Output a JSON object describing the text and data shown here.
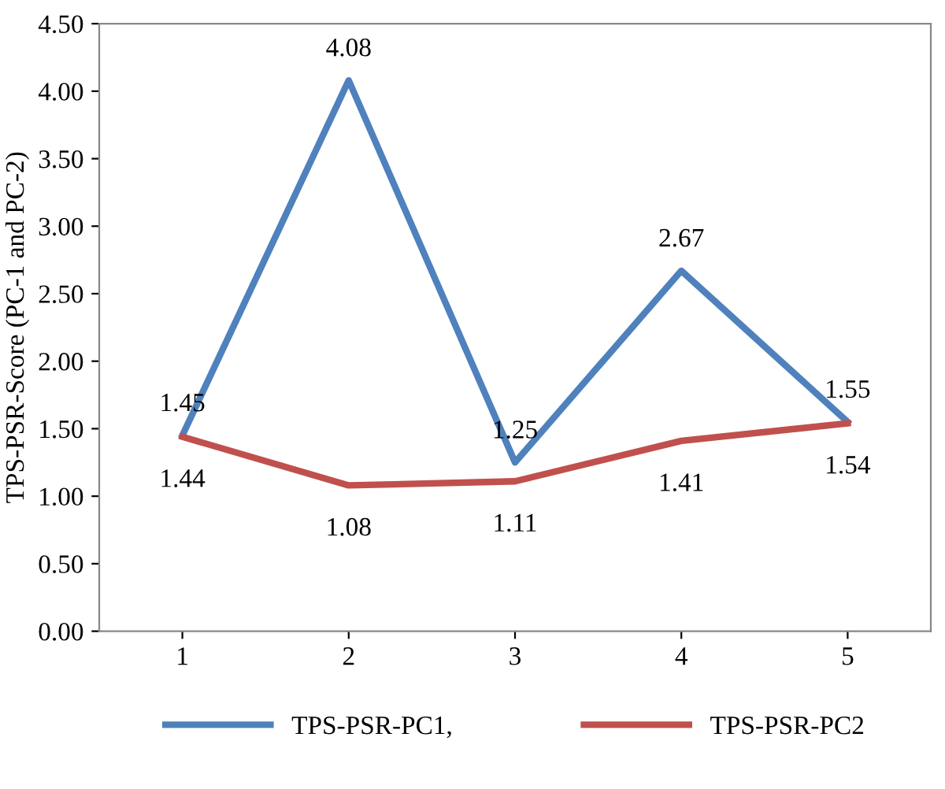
{
  "chart_data": {
    "type": "line",
    "ylabel": "TPS-PSR-Score (PC-1 and PC-2)",
    "categories": [
      "1",
      "2",
      "3",
      "4",
      "5"
    ],
    "series": [
      {
        "name": "TPS-PSR-PC1,",
        "color": "#4f81bd",
        "values": [
          1.45,
          4.08,
          1.25,
          2.67,
          1.55
        ]
      },
      {
        "name": "TPS-PSR-PC2",
        "color": "#c0504d",
        "values": [
          1.44,
          1.08,
          1.11,
          1.41,
          1.54
        ]
      }
    ],
    "ylim": [
      0,
      4.5
    ],
    "yticks": [
      {
        "value": 0,
        "label": "0.00"
      },
      {
        "value": 0.5,
        "label": "0.50"
      },
      {
        "value": 1,
        "label": "1.00"
      },
      {
        "value": 1.5,
        "label": "1.50"
      },
      {
        "value": 2,
        "label": "2.00"
      },
      {
        "value": 2.5,
        "label": "2.50"
      },
      {
        "value": 3,
        "label": "3.00"
      },
      {
        "value": 3.5,
        "label": "3.50"
      },
      {
        "value": 4,
        "label": "4.00"
      },
      {
        "value": 4.5,
        "label": "4.50"
      }
    ],
    "grid": false,
    "legend": "bottom",
    "marker": "none",
    "line_style": "solid",
    "data_labels": true
  }
}
